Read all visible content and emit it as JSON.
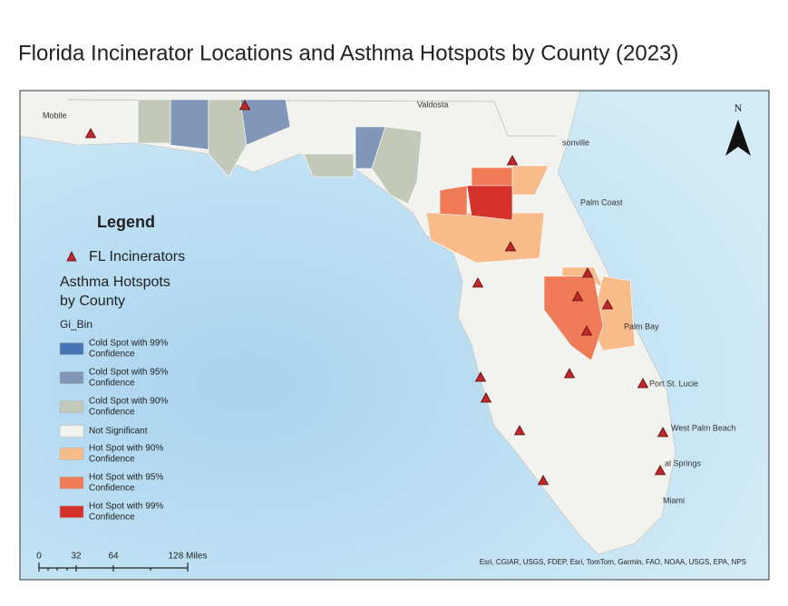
{
  "title": "Florida Incinerator Locations and Asthma Hotspots by County (2023)",
  "map": {
    "places": [
      "Mobile",
      "Valdosta",
      "sonville",
      "Palm Coast",
      "Palm Bay",
      "Port St. Lucie",
      "West Palm Beach",
      "al Springs",
      "Miami"
    ],
    "north": "N",
    "attribution": "Esri, CGIAR, USGS, FDEP, Esri, TomTom, Garmin, FAO, NOAA, USGS, EPA, NPS"
  },
  "legend": {
    "title": "Legend",
    "incinerators": "FL Incinerators",
    "layer_title": [
      "Asthma Hotspots",
      "by County"
    ],
    "field": "Gi_Bin",
    "classes": [
      {
        "label": [
          "Cold Spot with 99%",
          "Confidence"
        ],
        "color": "#4575b4"
      },
      {
        "label": [
          "Cold Spot with 95%",
          "Confidence"
        ],
        "color": "#8197b8"
      },
      {
        "label": [
          "Cold Spot with 90%",
          "Confidence"
        ],
        "color": "#c3c9b8"
      },
      {
        "label": [
          "Not Significant"
        ],
        "color": "#f2f2ee"
      },
      {
        "label": [
          "Hot Spot with 90%",
          "Confidence"
        ],
        "color": "#f8bb8a"
      },
      {
        "label": [
          "Hot Spot with 95%",
          "Confidence"
        ],
        "color": "#ef7b59"
      },
      {
        "label": [
          "Hot Spot with 99%",
          "Confidence"
        ],
        "color": "#d5322c"
      }
    ]
  },
  "scale_bar": {
    "labels": [
      "0",
      "32",
      "64",
      "128 Miles"
    ]
  }
}
